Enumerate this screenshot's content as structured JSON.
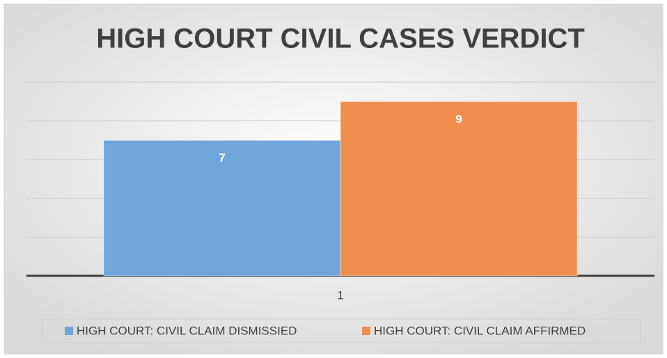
{
  "chart_data": {
    "type": "bar",
    "title": "HIGH COURT CIVIL CASES VERDICT",
    "categories": [
      "1"
    ],
    "series": [
      {
        "name": "HIGH COURT: CIVIL CLAIM DISMISSIED",
        "color": "#6fa6db",
        "values": [
          7
        ]
      },
      {
        "name": "HIGH COURT: CIVIL CLAIM AFFIRMED",
        "color": "#ef8f4f",
        "values": [
          9
        ]
      }
    ],
    "ylim": [
      0,
      10
    ],
    "yticks": [
      0,
      2,
      4,
      6,
      8,
      10
    ],
    "grid": true,
    "legend": "bottom"
  }
}
